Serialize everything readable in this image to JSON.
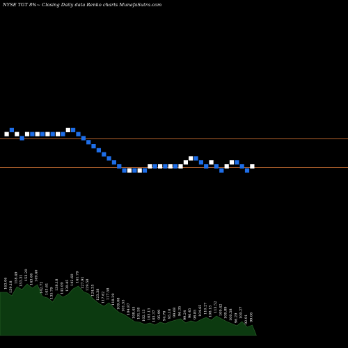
{
  "chart_title": "NYSE TGT 8%~  Closing Daily data  Renko  charts MunafaSutra.com",
  "colors": {
    "background": "#000000",
    "up_brick": "#ffffff",
    "down_brick": "#1e6ee8",
    "level_line": "#b8652e",
    "volume_fill": "#0c3a10",
    "volume_stroke": "#2e6a2e"
  },
  "chart_data": {
    "type": "renko",
    "brick_directions": [
      "up",
      "down",
      "up",
      "down",
      "up",
      "down",
      "up",
      "down",
      "up",
      "down",
      "up",
      "down",
      "up",
      "down",
      "down",
      "down",
      "down",
      "down",
      "down",
      "down",
      "down",
      "down",
      "down",
      "down",
      "up",
      "down",
      "up",
      "down",
      "up",
      "down",
      "up",
      "down",
      "up",
      "down",
      "up",
      "up",
      "up",
      "down",
      "down",
      "down",
      "up",
      "down",
      "down",
      "up",
      "up",
      "down",
      "down",
      "down",
      "up"
    ],
    "brick_levels": [
      6,
      7,
      6,
      5,
      6,
      6,
      6,
      6,
      6,
      6,
      6,
      6,
      7,
      7,
      6,
      5,
      4,
      3,
      2,
      1,
      0,
      -1,
      -2,
      -3,
      -3,
      -3,
      -3,
      -3,
      -2,
      -2,
      -2,
      -2,
      -2,
      -2,
      -2,
      -1,
      0,
      0,
      -1,
      -2,
      -1,
      -2,
      -3,
      -2,
      -1,
      -1,
      -2,
      -3,
      -2
    ],
    "horizontal_levels": [
      "upper",
      "lower"
    ],
    "volume_labels": [
      "163.06",
      "159.18",
      "158.49",
      "153.31",
      "153.20",
      "143.66",
      "149.40",
      "142.72",
      "143.61",
      "135.79",
      "138.18",
      "141.09",
      "130.45",
      "142.60",
      "141.79",
      "127.91",
      "129.58",
      "124.35",
      "123.38",
      "117.62",
      "117.58",
      "118.29",
      "109.08",
      "101.55",
      "104.87",
      "108.45",
      "101.58",
      "102.13",
      "103.13",
      "103.37",
      "95.99",
      "94.78",
      "95.10",
      "99.68",
      "96.35",
      "99.24",
      "96.45",
      "98.85",
      "104.65",
      "110.27",
      "108.15",
      "113.52",
      "109.42",
      "108.89",
      "100.58",
      "96.29",
      "100.27",
      "92.91",
      "99.06"
    ],
    "volume_values": [
      62,
      57,
      70,
      66,
      74,
      68,
      73,
      56,
      54,
      48,
      60,
      55,
      59,
      67,
      71,
      63,
      60,
      52,
      46,
      42,
      47,
      39,
      33,
      30,
      25,
      20,
      19,
      16,
      18,
      15,
      19,
      17,
      20,
      22,
      24,
      18,
      21,
      19,
      23,
      26,
      22,
      28,
      24,
      20,
      17,
      14,
      20,
      12,
      15
    ]
  }
}
